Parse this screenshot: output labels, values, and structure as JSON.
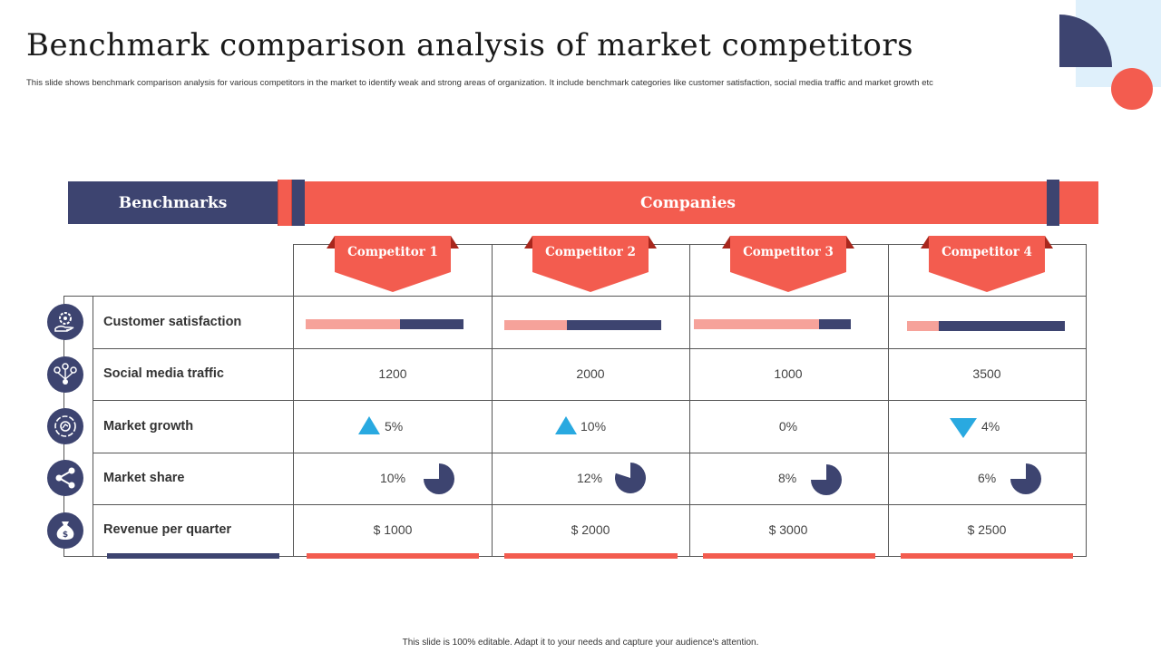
{
  "title": "Benchmark comparison analysis of market competitors",
  "subtitle": "This slide shows benchmark comparison analysis for various competitors in the market to identify weak and strong areas of organization. It include benchmark categories like customer satisfaction, social media traffic and market growth etc",
  "header": {
    "benchmarks": "Benchmarks",
    "companies": "Companies"
  },
  "competitors": [
    {
      "label": "Competitor 1"
    },
    {
      "label": "Competitor 2"
    },
    {
      "label": "Competitor 3"
    },
    {
      "label": "Competitor 4"
    }
  ],
  "rows": [
    {
      "label": "Customer satisfaction",
      "icon": "gear-hand-icon"
    },
    {
      "label": "Social media traffic",
      "icon": "network-icon"
    },
    {
      "label": "Market growth",
      "icon": "growth-cycle-icon"
    },
    {
      "label": "Market share",
      "icon": "share-icon"
    },
    {
      "label": "Revenue per quarter",
      "icon": "money-bag-icon"
    }
  ],
  "customer_satisfaction": [
    0.6,
    0.4,
    0.8,
    0.2
  ],
  "social_media_traffic": [
    "1200",
    "2000",
    "1000",
    "3500"
  ],
  "market_growth": [
    {
      "value": "5%",
      "trend": "up"
    },
    {
      "value": "10%",
      "trend": "up"
    },
    {
      "value": "0%",
      "trend": "none"
    },
    {
      "value": "4%",
      "trend": "down"
    }
  ],
  "market_share": [
    {
      "value": "10%",
      "share": 0.75
    },
    {
      "value": "12%",
      "share": 0.8
    },
    {
      "value": "8%",
      "share": 0.75
    },
    {
      "value": "6%",
      "share": 0.75
    }
  ],
  "revenue_per_quarter": [
    "$ 1000",
    "$ 2000",
    "$ 3000",
    "$ 2500"
  ],
  "footer": "This slide is 100% editable. Adapt it to your needs and capture your audience's attention.",
  "colors": {
    "navy": "#3d4470",
    "coral": "#f35c4f",
    "light_coral": "#f6a29a",
    "blue_arrow": "#29a9e0"
  }
}
